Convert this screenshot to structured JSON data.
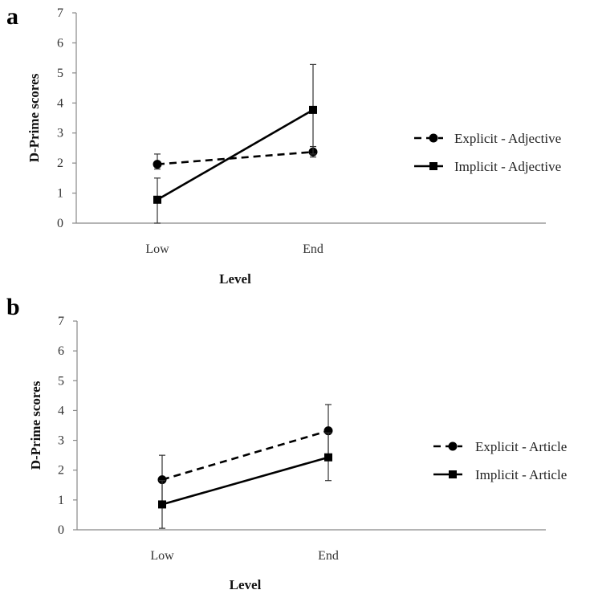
{
  "chart_data": [
    {
      "type": "line",
      "panel_label": "a",
      "categories": [
        "Low",
        "End"
      ],
      "xlabel": "Level",
      "ylabel": "D-Prime scores",
      "ylim": [
        0,
        7
      ],
      "yticks": [
        "0",
        "1",
        "2",
        "3",
        "4",
        "5",
        "6",
        "7"
      ],
      "grid": false,
      "legend_position": "right",
      "series": [
        {
          "name": "Explicit - Adjective",
          "style": "dashed",
          "marker": "circle",
          "values": [
            1.96,
            2.37
          ],
          "error_low": [
            1.8,
            2.2
          ],
          "error_high": [
            2.3,
            2.55
          ]
        },
        {
          "name": "Implicit - Adjective",
          "style": "solid",
          "marker": "square",
          "values": [
            0.78,
            3.77
          ],
          "error_low": [
            0,
            2.3
          ],
          "error_high": [
            1.5,
            5.28
          ]
        }
      ]
    },
    {
      "type": "line",
      "panel_label": "b",
      "categories": [
        "Low",
        "End"
      ],
      "xlabel": "Level",
      "ylabel": "D-Prime scores",
      "ylim": [
        0,
        7
      ],
      "yticks": [
        "0",
        "1",
        "2",
        "3",
        "4",
        "5",
        "6",
        "7"
      ],
      "grid": false,
      "legend_position": "right",
      "series": [
        {
          "name": "Explicit - Article",
          "style": "dashed",
          "marker": "circle",
          "values": [
            1.68,
            3.32
          ],
          "error_low": [
            0.9,
            2.5
          ],
          "error_high": [
            2.5,
            4.2
          ]
        },
        {
          "name": "Implicit - Article",
          "style": "solid",
          "marker": "square",
          "values": [
            0.85,
            2.43
          ],
          "error_low": [
            0.05,
            1.65
          ],
          "error_high": [
            1.65,
            3.25
          ]
        }
      ]
    }
  ]
}
